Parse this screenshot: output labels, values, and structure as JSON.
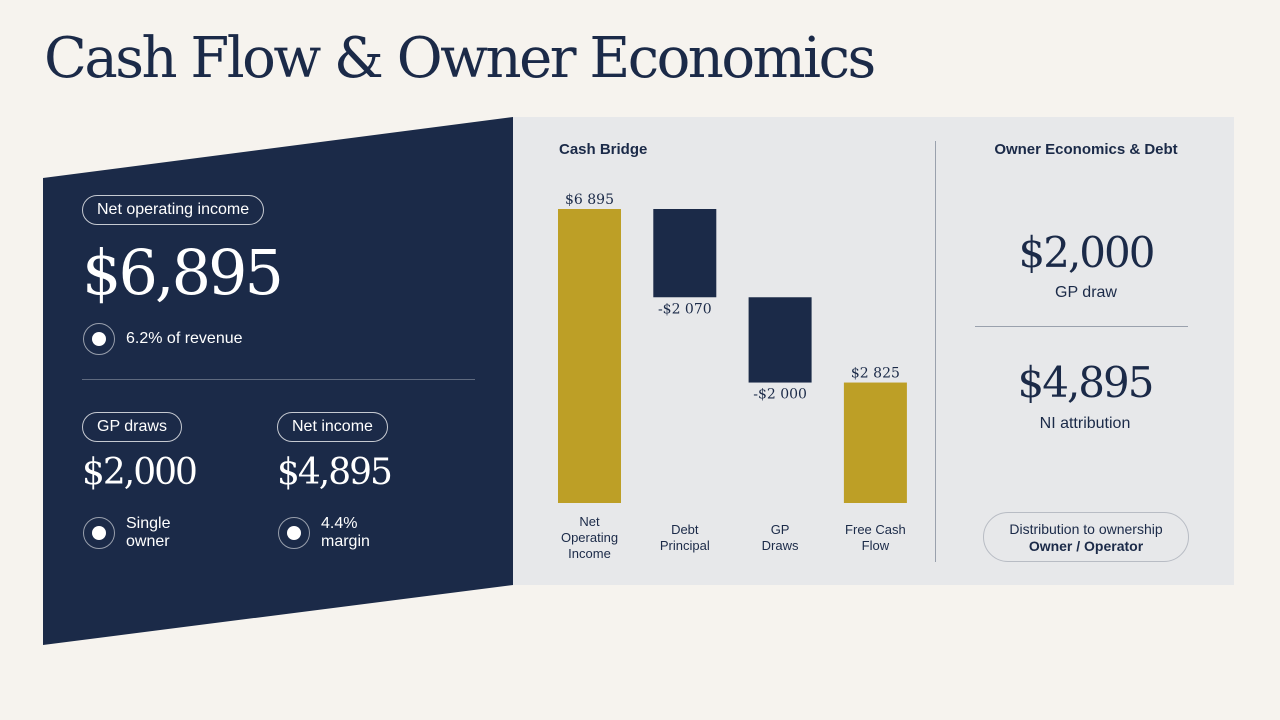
{
  "page": {
    "title": "Cash Flow & Owner Economics"
  },
  "left_panel": {
    "noi_label": "Net operating income",
    "noi_value": "$6,895",
    "noi_note": "6.2% of revenue",
    "gp_label": "GP draws",
    "gp_value": "$2,000",
    "gp_note": "Single owner",
    "ni_label": "Net income",
    "ni_value": "$4,895",
    "ni_note": "4.4% margin"
  },
  "owner": {
    "heading": "Owner Economics & Debt",
    "gp_draw_value": "$2,000",
    "gp_draw_label": "GP draw",
    "ni_value": "$4,895",
    "ni_label": "NI attribution",
    "distribution_line1": "Distribution to ownership",
    "distribution_line2": "Owner / Operator"
  },
  "colors": {
    "navy": "#1b2a48",
    "gold": "#bd9f26",
    "panel_gray": "#e7e8ea",
    "background": "#f6f3ee"
  },
  "chart_data": {
    "type": "bar",
    "subtype": "waterfall",
    "title": "Cash Bridge",
    "categories": [
      "Net Operating Income",
      "Debt Principal",
      "GP Draws",
      "Free Cash Flow"
    ],
    "category_lines": [
      [
        "Net",
        "Operating",
        "Income"
      ],
      [
        "Debt",
        "Principal"
      ],
      [
        "GP",
        "Draws"
      ],
      [
        "Free Cash",
        "Flow"
      ]
    ],
    "values": [
      6895,
      -2070,
      -2000,
      2825
    ],
    "data_labels": [
      "$6 895",
      "-$2 070",
      "-$2 000",
      "$2 825"
    ],
    "bar_kinds": [
      "total",
      "decrease",
      "decrease",
      "total"
    ],
    "ylim": [
      0,
      6895
    ],
    "grid": false,
    "legend": "none"
  }
}
